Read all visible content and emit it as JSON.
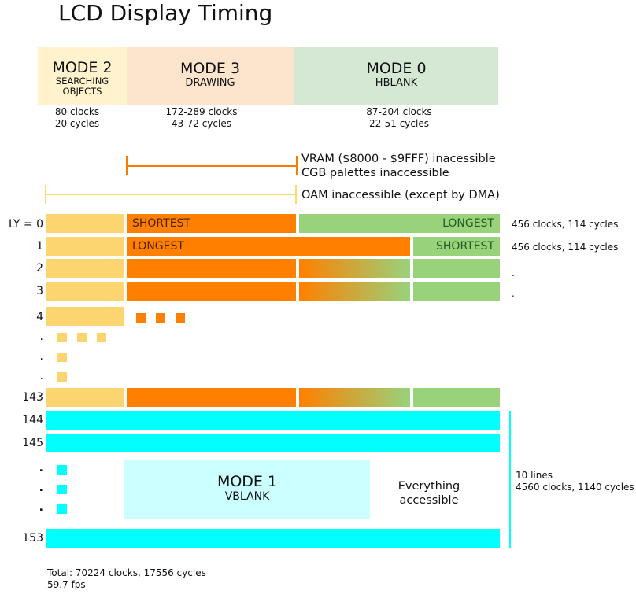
{
  "title": "LCD Display Timing",
  "modes": {
    "mode2": {
      "name": "MODE 2",
      "sub": "SEARCHING OBJECTS",
      "clocks": "80 clocks",
      "cycles": "20 cycles",
      "color": "#fff2cc"
    },
    "mode3": {
      "name": "MODE 3",
      "sub": "DRAWING",
      "clocks": "172-289 clocks",
      "cycles": "43-72 cycles",
      "color": "#fde5cd"
    },
    "mode0": {
      "name": "MODE 0",
      "sub": "HBLANK",
      "clocks": "87-204 clocks",
      "cycles": "22-51 cycles",
      "color": "#d5e8d4"
    }
  },
  "access": {
    "vram_line1": "VRAM ($8000 - $9FFF) inacessible",
    "vram_line2": "CGB palettes inaccessible",
    "oam": "OAM inaccessible (except by DMA)"
  },
  "rows": {
    "ly0": {
      "label": "LY = 0",
      "mode3_text": "SHORTEST",
      "mode0_text": "LONGEST",
      "note": "456 clocks, 114 cycles"
    },
    "ly1": {
      "label": "1",
      "mode3_text": "LONGEST",
      "mode0_text": "SHORTEST",
      "note": "456 clocks, 114 cycles"
    },
    "ly2": {
      "label": "2",
      "note": "."
    },
    "ly3": {
      "label": "3",
      "note": "."
    },
    "ly4": {
      "label": "4"
    },
    "dot_a": ".",
    "dot_b": ".",
    "dot_c": ".",
    "ly143": {
      "label": "143"
    },
    "ly144": {
      "label": "144"
    },
    "ly145": {
      "label": "145"
    },
    "vdot_a": ".",
    "vdot_b": ".",
    "vdot_c": ".",
    "ly153": {
      "label": "153"
    }
  },
  "vblank": {
    "name": "MODE 1",
    "sub": "VBLANK",
    "everything_line1": "Everything",
    "everything_line2": "accessible",
    "lines_note": "10 lines",
    "clocks_note": "4560 clocks, 1140 cycles"
  },
  "total": {
    "line1": "Total: 70224 clocks, 17556 cycles",
    "line2": "59.7 fps"
  },
  "colors": {
    "mode2_bar": "#fdd570",
    "mode3_bar": "#ff8000",
    "mode0_bar": "#98d27b",
    "vblank_bar": "#00ffff",
    "vblank_box": "#ccffff",
    "vram_bracket": "#f57c00",
    "oam_bracket": "#ffd966"
  }
}
